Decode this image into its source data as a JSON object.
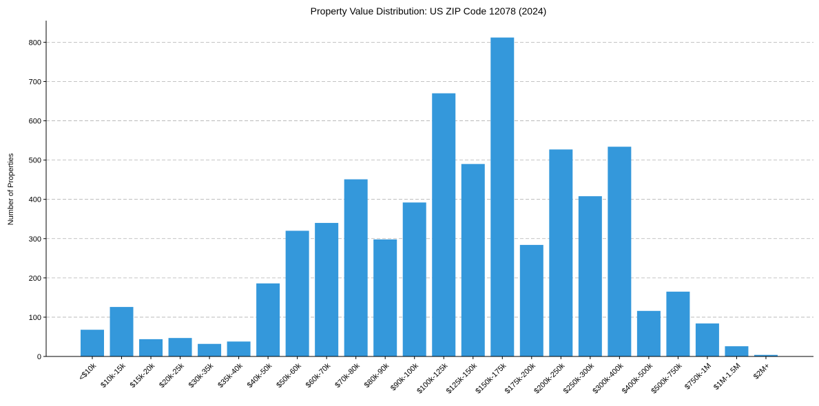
{
  "chart_data": {
    "type": "bar",
    "title": "Property Value Distribution: US ZIP Code 12078 (2024)",
    "xlabel": "",
    "ylabel": "Number of Properties",
    "ylim": [
      0,
      855
    ],
    "yticks": [
      0,
      100,
      200,
      300,
      400,
      500,
      600,
      700,
      800
    ],
    "grid": "y-dashed",
    "bar_color": "#3498db",
    "categories": [
      "<$10k",
      "$10k-15k",
      "$15k-20k",
      "$20k-25k",
      "$30k-35k",
      "$35k-40k",
      "$40k-50k",
      "$50k-60k",
      "$60k-70k",
      "$70k-80k",
      "$80k-90k",
      "$90k-100k",
      "$100k-125k",
      "$125k-150k",
      "$150k-175k",
      "$175k-200k",
      "$200k-250k",
      "$250k-300k",
      "$300k-400k",
      "$400k-500k",
      "$500k-750k",
      "$750k-1M",
      "$1M-1.5M",
      "$2M+"
    ],
    "values": [
      68,
      126,
      44,
      47,
      32,
      38,
      186,
      320,
      340,
      451,
      298,
      392,
      670,
      490,
      812,
      284,
      527,
      408,
      534,
      116,
      165,
      84,
      26,
      4
    ]
  }
}
